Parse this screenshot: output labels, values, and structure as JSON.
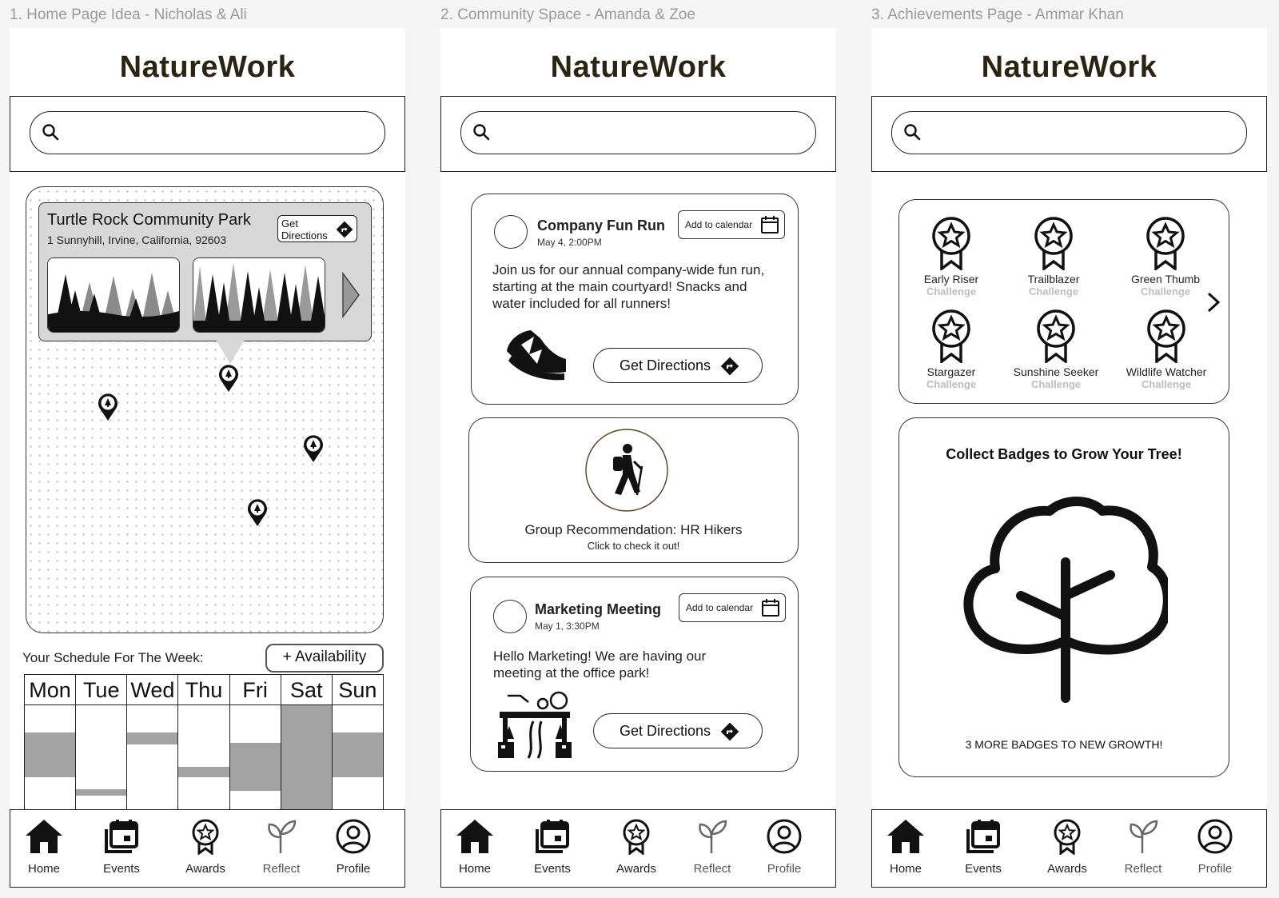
{
  "frames": [
    {
      "title": "1. Home Page Idea - Nicholas & Ali"
    },
    {
      "title": "2. Community Space - Amanda & Zoe"
    },
    {
      "title": "3. Achievements Page - Ammar Khan"
    }
  ],
  "app": {
    "brand": "NatureWork",
    "search_placeholder": ""
  },
  "nav": {
    "home": "Home",
    "events": "Events",
    "awards": "Awards",
    "reflect": "Reflect",
    "profile": "Profile"
  },
  "home": {
    "park": {
      "name": "Turtle Rock Community Park",
      "address": "1 Sunnyhill, Irvine, California, 92603",
      "directions_line1": "Get",
      "directions_line2": "Directions"
    },
    "schedule": {
      "label": "Your Schedule For The Week:",
      "availability": "+ Availability",
      "days": [
        "Mon",
        "Tue",
        "Wed",
        "Thu",
        "Fri",
        "Sat",
        "Sun"
      ],
      "busy_fraction": [
        [
          0.25,
          0.67
        ],
        [
          0.78,
          0.84
        ],
        [
          0.25,
          0.36
        ],
        [
          0.57,
          0.67
        ],
        [
          0.35,
          0.79
        ],
        [
          0,
          1
        ],
        [
          0.25,
          0.67
        ]
      ]
    }
  },
  "community": {
    "events": [
      {
        "title": "Company Fun Run",
        "date": "May 4, 2:00PM",
        "add_to_calendar": "Add to calendar",
        "body": "Join us for our annual company-wide fun run, starting at the main courtyard! Snacks and water included for all runners!",
        "directions": "Get Directions"
      },
      {
        "title": "Marketing Meeting",
        "date": "May 1, 3:30PM",
        "add_to_calendar": "Add to calendar",
        "body": "Hello Marketing! We are having our meeting at the office park!",
        "directions": "Get Directions"
      }
    ],
    "recommendation": {
      "title": "Group Recommendation: HR Hikers",
      "subtitle": "Click to check it out!"
    }
  },
  "achievements": {
    "badges": [
      {
        "name": "Early Riser",
        "sub": "Challenge"
      },
      {
        "name": "Trailblazer",
        "sub": "Challenge"
      },
      {
        "name": "Green Thumb",
        "sub": "Challenge"
      },
      {
        "name": "Stargazer",
        "sub": "Challenge"
      },
      {
        "name": "Sunshine Seeker",
        "sub": "Challenge"
      },
      {
        "name": "Wildlife Watcher",
        "sub": "Challenge"
      }
    ],
    "tree": {
      "title": "Collect Badges to Grow Your Tree!",
      "footer": "3 MORE BADGES TO NEW GROWTH!"
    }
  },
  "colors": {
    "brand": "#2b2412",
    "busy": "#a3a3a3",
    "popup": "#d8d8d8"
  }
}
